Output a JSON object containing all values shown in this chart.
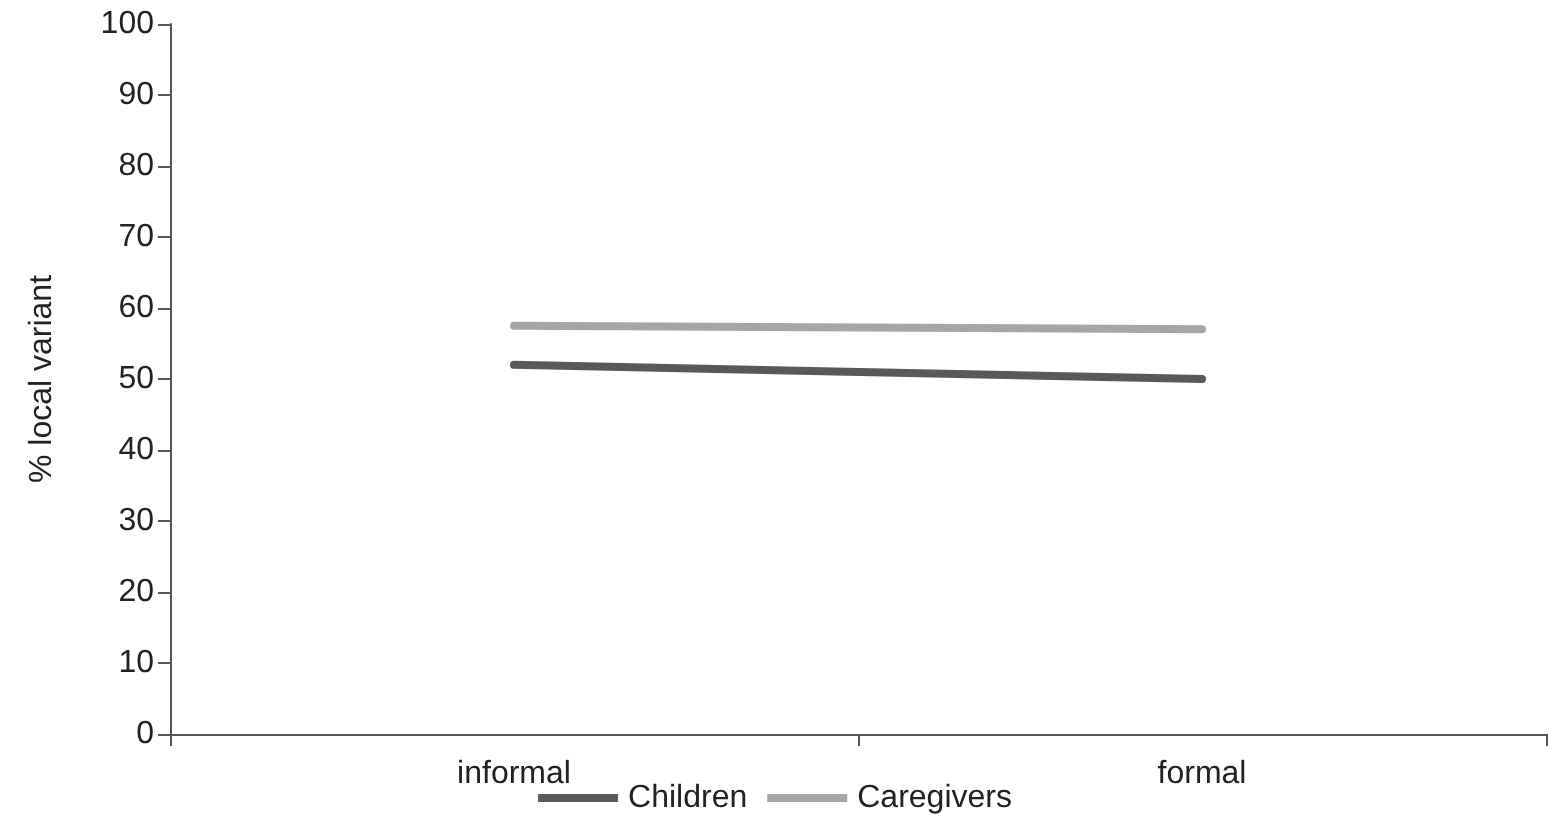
{
  "chart_data": {
    "type": "line",
    "ylabel": "% local variant",
    "categories": [
      "informal",
      "formal"
    ],
    "series": [
      {
        "name": "Children",
        "color": "#595959",
        "values": [
          52,
          50
        ]
      },
      {
        "name": "Caregivers",
        "color": "#a6a6a6",
        "values": [
          57.5,
          57
        ]
      }
    ],
    "ylim": [
      0,
      100
    ],
    "yticks": [
      0,
      10,
      20,
      30,
      40,
      50,
      60,
      70,
      80,
      90,
      100
    ],
    "grid": false,
    "legend": "bottom",
    "marker": "none",
    "line_style": "solid"
  }
}
